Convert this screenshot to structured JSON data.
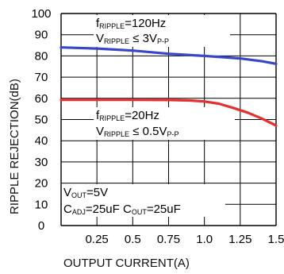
{
  "chart_data": {
    "type": "line",
    "xlabel": "OUTPUT CURRENT(A)",
    "ylabel": "RIPPLE REJECTION(dB)",
    "xlim": [
      0,
      1.5
    ],
    "ylim": [
      0,
      100
    ],
    "x_ticks": [
      "0.25",
      "0.5",
      "0.75",
      "1.0",
      "1.25",
      "1.5"
    ],
    "x_tick_values": [
      0.25,
      0.5,
      0.75,
      1.0,
      1.25,
      1.5
    ],
    "y_ticks": [
      "0",
      "10",
      "20",
      "30",
      "40",
      "50",
      "60",
      "70",
      "80",
      "90",
      "100"
    ],
    "y_tick_values": [
      0,
      10,
      20,
      30,
      40,
      50,
      60,
      70,
      80,
      90,
      100
    ],
    "grid": true,
    "series": [
      {
        "color": "#3a46c8",
        "x": [
          0,
          0.25,
          0.5,
          0.75,
          1.0,
          1.1,
          1.25,
          1.4,
          1.5
        ],
        "y": [
          84,
          83.5,
          82.5,
          81,
          80,
          79.5,
          78.8,
          77.5,
          76.3
        ]
      },
      {
        "color": "#e53030",
        "x": [
          0,
          0.25,
          0.5,
          0.75,
          0.9,
          1.0,
          1.1,
          1.2,
          1.3,
          1.4,
          1.5
        ],
        "y": [
          59.3,
          59.3,
          59.3,
          59.2,
          59,
          58.5,
          57.5,
          55.5,
          53.3,
          50.5,
          47.2
        ]
      }
    ],
    "annotations": [
      {
        "id": "blue",
        "line1": {
          "main": "f",
          "sub": "RIPPLE",
          "rest": "=120Hz"
        },
        "line2": {
          "main": "V",
          "sub": "RIPPLE",
          "rest": " ≤ 3V",
          "sub2": "P-P"
        }
      },
      {
        "id": "red",
        "line1": {
          "main": "f",
          "sub": "RIPPLE",
          "rest": "=20Hz"
        },
        "line2": {
          "main": "V",
          "sub": "RIPPLE",
          "rest": " ≤ 0.5V",
          "sub2": "P-P"
        }
      },
      {
        "id": "cond",
        "line1": {
          "main": "V",
          "sub": "OUT",
          "rest": "=5V"
        },
        "line2": {
          "main": "C",
          "sub": "ADJ",
          "rest": "=25uF  C",
          "sub2": "OUT",
          "rest2": "=25uF"
        }
      }
    ]
  }
}
